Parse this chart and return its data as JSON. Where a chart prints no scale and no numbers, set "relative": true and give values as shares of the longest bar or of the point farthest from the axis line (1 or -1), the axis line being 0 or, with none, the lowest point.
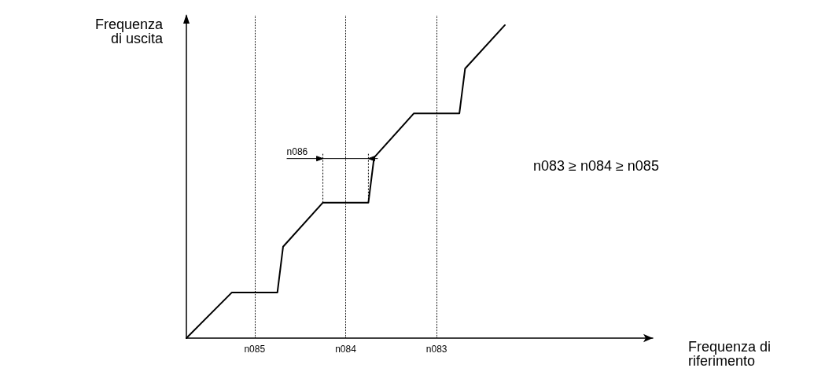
{
  "chart_data": {
    "type": "line",
    "relative": true,
    "xlabel": "Frequenza di\nriferimento",
    "ylabel": "Frequenza\ndi uscita",
    "categories": [
      null,
      null,
      null,
      null,
      null,
      null,
      null,
      null,
      null,
      null,
      null,
      null,
      "n085",
      null,
      null,
      null,
      null,
      null,
      null,
      null,
      null,
      null,
      null,
      null,
      null,
      null,
      null,
      null,
      "n084",
      null,
      null,
      null,
      null,
      null,
      null,
      null,
      null,
      null,
      null,
      null,
      null,
      null,
      null,
      null,
      "n083",
      null,
      null,
      null,
      null,
      null,
      null,
      null,
      null,
      null,
      null,
      null,
      null,
      null,
      null,
      null,
      null,
      null,
      null,
      null,
      null,
      null,
      null,
      null,
      null,
      null,
      null,
      null,
      null,
      null,
      null,
      null,
      null,
      null,
      null,
      null,
      null,
      null,
      null
    ],
    "values": [
      0,
      null,
      null,
      null,
      null,
      null,
      null,
      null,
      0.146,
      null,
      null,
      null,
      null,
      null,
      null,
      null,
      0.146,
      0.292,
      null,
      null,
      null,
      null,
      null,
      null,
      0.433,
      null,
      null,
      null,
      null,
      null,
      null,
      null,
      0.433,
      0.577,
      null,
      null,
      null,
      null,
      null,
      null,
      0.718,
      null,
      null,
      null,
      null,
      null,
      null,
      null,
      0.718,
      0.861,
      null,
      null,
      null,
      null,
      null,
      null,
      1,
      null,
      null,
      null,
      null,
      null,
      null,
      null,
      null,
      null,
      null,
      null,
      null,
      null,
      null,
      null,
      null,
      null,
      null,
      null,
      null,
      null,
      null,
      null,
      null,
      null,
      null
    ],
    "color": "#000000",
    "marker": "none",
    "line_style": "solid",
    "grid": "x",
    "annotations": [
      "n083 ≥ n084 ≥ n085",
      "n086"
    ]
  }
}
